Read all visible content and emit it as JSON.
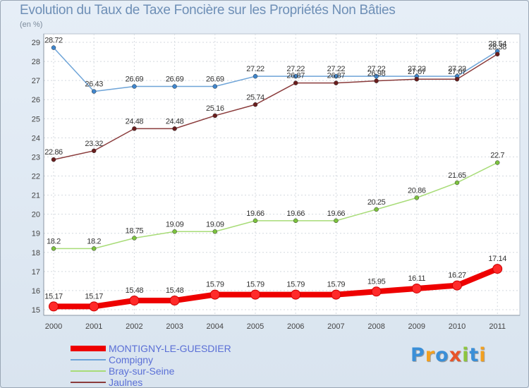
{
  "title": "Evolution du Taux de Taxe Foncière sur les Propriétés Non Bâties",
  "subtitle": "(en %)",
  "logo": {
    "text": "Proxiti",
    "colors": [
      "#3a8fd8",
      "#f2a020",
      "#3a8fd8",
      "#e8542a",
      "#8cc63e",
      "#3a8fd8",
      "#f2a020"
    ]
  },
  "chart_data": {
    "type": "line",
    "title": "Evolution du Taux de Taxe Foncière sur les Propriétés Non Bâties",
    "ylabel": "(en %)",
    "xlabel": "",
    "ylim": [
      15,
      29
    ],
    "yticks": [
      15,
      16,
      17,
      18,
      19,
      20,
      21,
      22,
      23,
      24,
      25,
      26,
      27,
      28,
      29
    ],
    "x": [
      "2000",
      "2001",
      "2002",
      "2003",
      "2004",
      "2005",
      "2006",
      "2007",
      "2008",
      "2009",
      "2010",
      "2011"
    ],
    "grid": true,
    "legend_position": "bottom-left",
    "series": [
      {
        "name": "MONTIGNY-LE-GUESDIER",
        "color": "#ee0000",
        "marker": "#ff2a2a",
        "bold": true,
        "values": [
          15.17,
          15.17,
          15.48,
          15.48,
          15.79,
          15.79,
          15.79,
          15.79,
          15.95,
          16.11,
          16.27,
          17.14
        ],
        "labels": [
          "15.17",
          "15.17",
          "15.48",
          "15.48",
          "15.79",
          "15.79",
          "15.79",
          "15.79",
          "15.95",
          "16.11",
          "16.27",
          "17.14"
        ]
      },
      {
        "name": "Compigny",
        "color": "#6ea4d8",
        "marker": "#3f85cc",
        "bold": false,
        "values": [
          28.72,
          26.43,
          26.69,
          26.69,
          26.69,
          27.22,
          27.22,
          27.22,
          27.22,
          27.22,
          27.22,
          28.54
        ],
        "labels": [
          "28.72",
          "26.43",
          "26.69",
          "26.69",
          "26.69",
          "27.22",
          "27.22",
          "27.22",
          "27.22",
          "27.22",
          "27.22",
          "28.54"
        ]
      },
      {
        "name": "Bray-sur-Seine",
        "color": "#a8dc78",
        "marker": "#7cc23e",
        "bold": false,
        "values": [
          18.2,
          18.2,
          18.75,
          19.09,
          19.09,
          19.66,
          19.66,
          19.66,
          20.25,
          20.86,
          21.65,
          22.7
        ],
        "labels": [
          "18.2",
          "18.2",
          "18.75",
          "19.09",
          "19.09",
          "19.66",
          "19.66",
          "19.66",
          "20.25",
          "20.86",
          "21.65",
          "22.7"
        ]
      },
      {
        "name": "Jaulnes",
        "color": "#8a3b3b",
        "marker": "#6a1e1e",
        "bold": false,
        "values": [
          22.86,
          23.32,
          24.48,
          24.48,
          25.16,
          25.74,
          26.87,
          26.87,
          26.98,
          27.07,
          27.07,
          28.38
        ],
        "labels": [
          "22.86",
          "23.32",
          "24.48",
          "24.48",
          "25.16",
          "25.74",
          "26.87",
          "26.87",
          "26.98",
          "27.07",
          "27.07",
          "28.38"
        ]
      }
    ]
  }
}
